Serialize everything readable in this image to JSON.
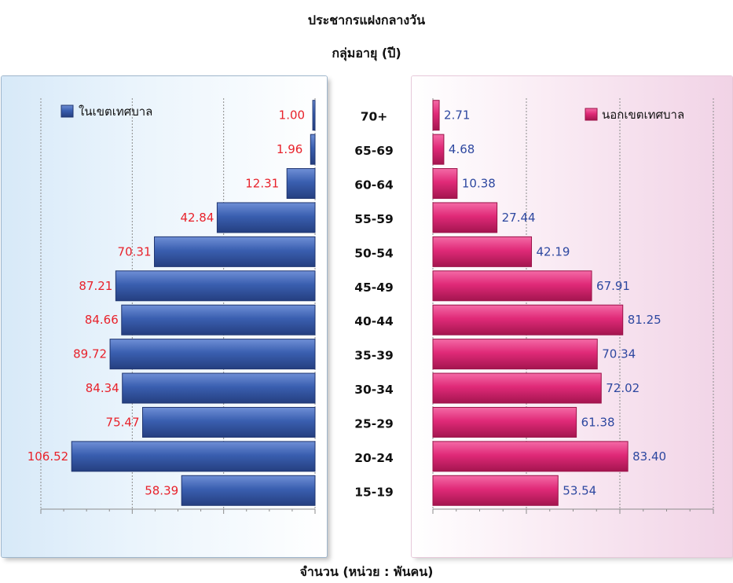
{
  "chart_data": {
    "type": "bar",
    "title": "ประชากรแฝงกลางวัน",
    "subtitle": "กลุ่มอายุ (ปี)",
    "xlabel": "จำนวน (หน่วย : พันคน)",
    "categories": [
      "70+",
      "65-69",
      "60-64",
      "55-59",
      "50-54",
      "45-49",
      "40-44",
      "35-39",
      "30-34",
      "25-29",
      "20-24",
      "15-19"
    ],
    "series": [
      {
        "name": "ในเขตเทศบาล",
        "values": [
          1.0,
          1.96,
          12.31,
          42.84,
          70.31,
          87.21,
          84.66,
          89.72,
          84.34,
          75.47,
          106.52,
          58.39
        ],
        "color": "#3a5fb0",
        "label_color": "#e8222b"
      },
      {
        "name": "นอกเขตเทศบาล",
        "values": [
          2.71,
          4.68,
          10.38,
          27.44,
          42.19,
          67.91,
          81.25,
          70.34,
          72.02,
          61.38,
          83.4,
          53.54
        ],
        "color": "#e02a78",
        "label_color": "#2e48a0"
      }
    ],
    "value_labels": {
      "left": [
        "1.00",
        "1.96",
        "12.31",
        "42.84",
        "70.31",
        "87.21",
        "84.66",
        "89.72",
        "84.34",
        "75.47",
        "106.52",
        "58.39"
      ],
      "right": [
        "2.71",
        "4.68",
        "10.38",
        "27.44",
        "42.19",
        "67.91",
        "81.25",
        "70.34",
        "72.02",
        "61.38",
        "83.40",
        "53.54"
      ]
    },
    "xlim_left": [
      0,
      120
    ],
    "xlim_right": [
      0,
      120
    ],
    "grid": true,
    "legend_left": "top-left",
    "legend_right": "top-right"
  }
}
